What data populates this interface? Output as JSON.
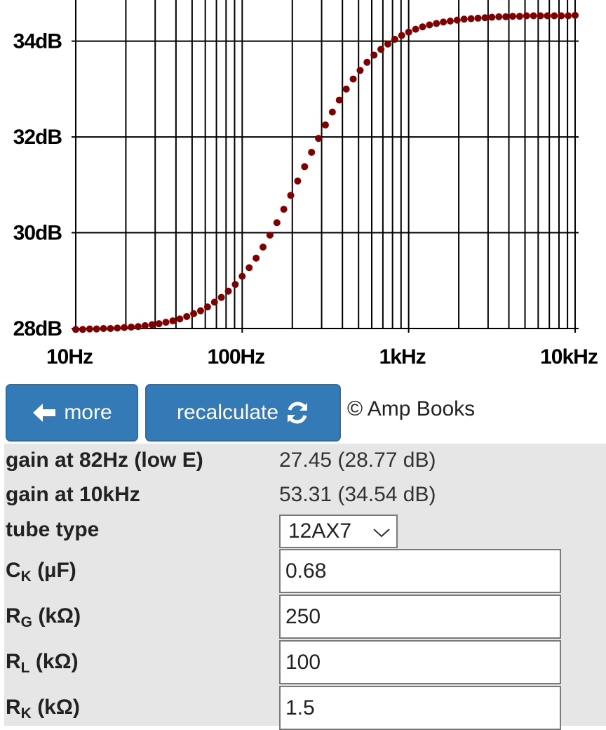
{
  "chart_data": {
    "type": "scatter",
    "x": [
      10,
      11.01,
      12.12,
      13.34,
      14.68,
      16.16,
      17.78,
      19.57,
      21.54,
      23.71,
      26.1,
      28.73,
      31.62,
      34.81,
      38.31,
      42.17,
      46.42,
      51.09,
      56.23,
      61.9,
      68.13,
      74.99,
      82.54,
      90.85,
      100,
      110.1,
      121.2,
      133.4,
      146.8,
      161.6,
      177.8,
      195.7,
      215.4,
      237.1,
      261,
      287.3,
      316.2,
      348.1,
      383.1,
      421.7,
      464.2,
      510.9,
      562.3,
      619,
      681.3,
      749.9,
      825.4,
      908.5,
      1000,
      1101,
      1212,
      1334,
      1468,
      1616,
      1778,
      1957,
      2154,
      2371,
      2610,
      2873,
      3162,
      3481,
      3831,
      4217,
      4642,
      5109,
      5623,
      6190,
      6813,
      7499,
      8254,
      9085,
      10000
    ],
    "values": [
      27.98,
      27.98,
      27.99,
      27.99,
      28.0,
      28.0,
      28.01,
      28.02,
      28.03,
      28.04,
      28.06,
      28.08,
      28.1,
      28.13,
      28.16,
      28.2,
      28.25,
      28.31,
      28.37,
      28.45,
      28.55,
      28.65,
      28.78,
      28.92,
      29.09,
      29.27,
      29.47,
      29.7,
      29.95,
      30.21,
      30.49,
      30.78,
      31.08,
      31.38,
      31.68,
      31.97,
      32.25,
      32.52,
      32.77,
      33.0,
      33.21,
      33.39,
      33.56,
      33.71,
      33.83,
      33.94,
      34.04,
      34.12,
      34.19,
      34.25,
      34.3,
      34.34,
      34.37,
      34.4,
      34.42,
      34.44,
      34.46,
      34.47,
      34.48,
      34.49,
      34.5,
      34.51,
      34.51,
      34.52,
      34.52,
      34.53,
      34.53,
      34.53,
      34.53,
      34.53,
      34.53,
      34.53,
      34.54
    ],
    "color": "#800000",
    "xscale": "log",
    "xlim": [
      10,
      10500
    ],
    "ylim": [
      28,
      34.86
    ],
    "xticks": [
      {
        "value": 10,
        "label": "10Hz"
      },
      {
        "value": 100,
        "label": "100Hz"
      },
      {
        "value": 1000,
        "label": "1kHz"
      },
      {
        "value": 10000,
        "label": "10kHz"
      }
    ],
    "xgrid": [
      20,
      30,
      40,
      50,
      60,
      70,
      80,
      90,
      200,
      300,
      400,
      500,
      600,
      700,
      800,
      900,
      2000,
      3000,
      4000,
      5000,
      6000,
      7000,
      8000,
      9000
    ],
    "yticks": [
      {
        "value": 28,
        "label": "28dB"
      },
      {
        "value": 30,
        "label": "30dB"
      },
      {
        "value": 32,
        "label": "32dB"
      },
      {
        "value": 34,
        "label": "34dB"
      }
    ],
    "grid": true
  },
  "buttons": [
    {
      "label": "more"
    },
    {
      "label": "recalculate"
    }
  ],
  "copyright": "© Amp Books",
  "results": [
    {
      "label": "gain at 82Hz (low E)",
      "value": "27.45 (28.77 dB)"
    },
    {
      "label": "gain at 10kHz",
      "value": "53.31 (34.54 dB)"
    }
  ],
  "tube_type": {
    "label": "tube type",
    "value": "12AX7"
  },
  "inputs": [
    {
      "symbol": "C",
      "subscript": "K",
      "unit": "(µF)",
      "value": "0.68"
    },
    {
      "symbol": "R",
      "subscript": "G",
      "unit": "(kΩ)",
      "value": "250"
    },
    {
      "symbol": "R",
      "subscript": "L",
      "unit": "(kΩ)",
      "value": "100"
    },
    {
      "symbol": "R",
      "subscript": "K",
      "unit": "(kΩ)",
      "value": "1.5"
    }
  ]
}
